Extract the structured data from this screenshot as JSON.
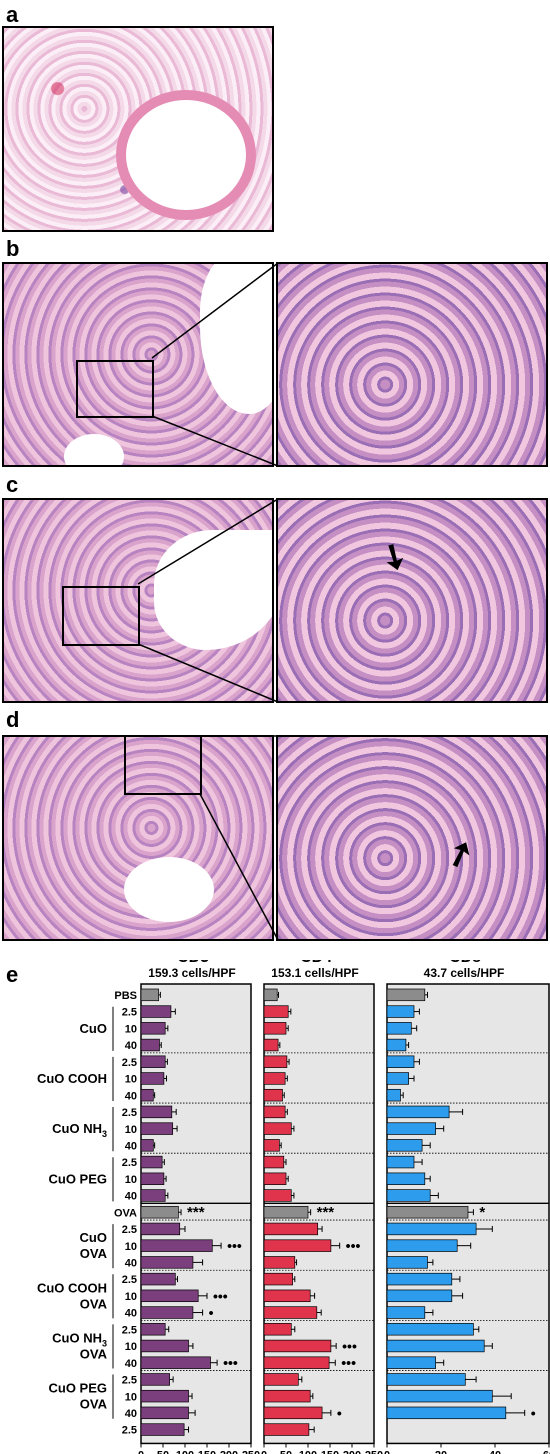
{
  "panel_labels": {
    "a": "a",
    "b": "b",
    "c": "c",
    "d": "d",
    "e": "e"
  },
  "chart_data": [
    {
      "type": "bar",
      "title": "CD3+",
      "title_main": "CD3",
      "title_sup": "+",
      "subtitle": "159.3 cells/HPF",
      "xlim": [
        0,
        250
      ],
      "xticks": [
        "0",
        "50",
        "100",
        "150",
        "200",
        "250"
      ],
      "tick_values": [
        0,
        50,
        100,
        150,
        200,
        250
      ],
      "values": [
        40,
        68,
        55,
        42,
        55,
        52,
        28,
        70,
        72,
        28,
        48,
        52,
        55,
        85,
        88,
        162,
        118,
        78,
        130,
        118,
        55,
        108,
        158,
        65,
        108,
        108,
        98
      ],
      "errors": [
        4,
        10,
        6,
        4,
        5,
        6,
        3,
        10,
        10,
        3,
        5,
        5,
        6,
        6,
        12,
        20,
        22,
        5,
        20,
        22,
        8,
        10,
        15,
        8,
        8,
        15,
        10
      ],
      "marks": [
        "",
        "",
        "",
        "",
        "",
        "",
        "",
        "",
        "",
        "",
        "",
        "",
        "",
        "***",
        "",
        "•••",
        "",
        "",
        "•••",
        "•",
        "",
        "",
        "•••",
        "",
        "",
        "",
        ""
      ],
      "color": "#7b3f7d"
    },
    {
      "type": "bar",
      "title": "CD4+",
      "title_main": "CD4",
      "title_sup": "+",
      "subtitle": "153.1 cells/HPF",
      "xlim": [
        0,
        250
      ],
      "xticks": [
        "0",
        "50",
        "100",
        "150",
        "200",
        "250"
      ],
      "tick_values": [
        0,
        50,
        100,
        150,
        200,
        250
      ],
      "values": [
        30,
        55,
        50,
        32,
        52,
        48,
        42,
        48,
        62,
        35,
        45,
        50,
        62,
        100,
        122,
        152,
        70,
        65,
        105,
        120,
        62,
        152,
        148,
        78,
        105,
        132,
        102
      ],
      "errors": [
        3,
        6,
        5,
        4,
        5,
        5,
        4,
        5,
        6,
        4,
        5,
        5,
        6,
        6,
        10,
        20,
        4,
        5,
        10,
        10,
        8,
        12,
        14,
        8,
        6,
        20,
        12
      ],
      "marks": [
        "",
        "",
        "",
        "",
        "",
        "",
        "",
        "",
        "",
        "",
        "",
        "",
        "",
        "***",
        "",
        "•••",
        "",
        "",
        "",
        "",
        "",
        "•••",
        "•••",
        "",
        "",
        "•",
        ""
      ],
      "color": "#e0344d"
    },
    {
      "type": "bar",
      "title": "CD8+",
      "title_main": "CD8",
      "title_sup": "+",
      "subtitle": "43.7 cells/HPF",
      "xlim": [
        0,
        60
      ],
      "xticks": [
        "0",
        "20",
        "40",
        "60"
      ],
      "tick_values": [
        0,
        20,
        40,
        60
      ],
      "values": [
        14,
        10,
        9,
        7,
        10,
        8,
        5,
        23,
        18,
        13,
        10,
        14,
        16,
        30,
        33,
        26,
        15,
        24,
        24,
        14,
        32,
        36,
        18,
        29,
        39,
        44
      ],
      "errors": [
        1,
        2,
        2,
        1,
        2,
        2,
        1,
        5,
        3,
        3,
        3,
        2,
        3,
        2,
        6,
        5,
        2,
        3,
        4,
        3,
        2,
        3,
        3,
        4,
        7,
        7
      ],
      "marks": [
        "",
        "",
        "",
        "",
        "",
        "",
        "",
        "",
        "",
        "",
        "",
        "",
        "",
        "*",
        "",
        "",
        "",
        "",
        "",
        "",
        "",
        "",
        "",
        "",
        "",
        "•"
      ],
      "color": "#2d9cec"
    }
  ],
  "row_labels": {
    "doses": [
      "2.5",
      "10",
      "40"
    ],
    "pbs": "PBS",
    "ova": "OVA",
    "cuo": "CuO",
    "cuo_cooh": "CuO COOH",
    "cuo_nh3_main": "CuO NH",
    "cuo_nh3_sub": "3",
    "cuo_peg": "CuO PEG",
    "ova_suffix": "OVA"
  }
}
